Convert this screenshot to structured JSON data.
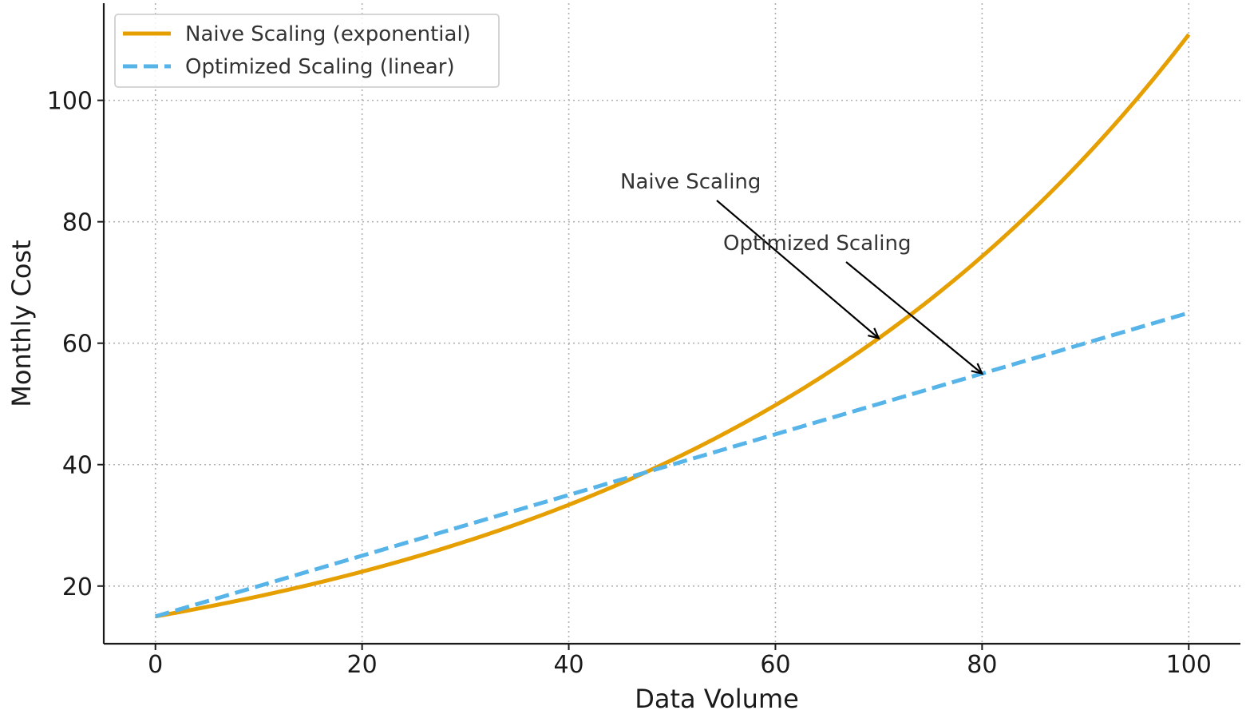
{
  "chart_data": {
    "type": "line",
    "title": "",
    "xlabel": "Data Volume",
    "ylabel": "Monthly Cost",
    "xlim": [
      -5,
      105
    ],
    "ylim": [
      10.5,
      116
    ],
    "xticks": [
      0,
      20,
      40,
      60,
      80,
      100
    ],
    "yticks": [
      20,
      40,
      60,
      80,
      100
    ],
    "grid": true,
    "legend_position": "top-left",
    "series": [
      {
        "name": "Naive Scaling (exponential)",
        "style": "solid",
        "color": "#E69F00",
        "function": "15 * exp(0.02 * x)",
        "x": [
          0,
          10,
          20,
          30,
          40,
          50,
          60,
          70,
          80,
          90,
          100
        ],
        "values": [
          15.0,
          18.3,
          22.4,
          27.3,
          33.4,
          40.8,
          49.8,
          60.8,
          74.3,
          90.7,
          110.8
        ]
      },
      {
        "name": "Optimized Scaling (linear)",
        "style": "dashed",
        "color": "#56B4E9",
        "function": "15 + 0.5 * x",
        "x": [
          0,
          10,
          20,
          30,
          40,
          50,
          60,
          70,
          80,
          90,
          100
        ],
        "values": [
          15.0,
          20.0,
          25.0,
          30.0,
          35.0,
          40.0,
          45.0,
          50.0,
          55.0,
          60.0,
          65.0
        ]
      }
    ],
    "annotations": [
      {
        "text": "Naive Scaling",
        "text_xy": [
          45,
          85
        ],
        "arrow_to": [
          70,
          60.8
        ]
      },
      {
        "text": "Optimized Scaling",
        "text_xy": [
          55,
          75
        ],
        "arrow_to": [
          80,
          55
        ]
      }
    ]
  }
}
